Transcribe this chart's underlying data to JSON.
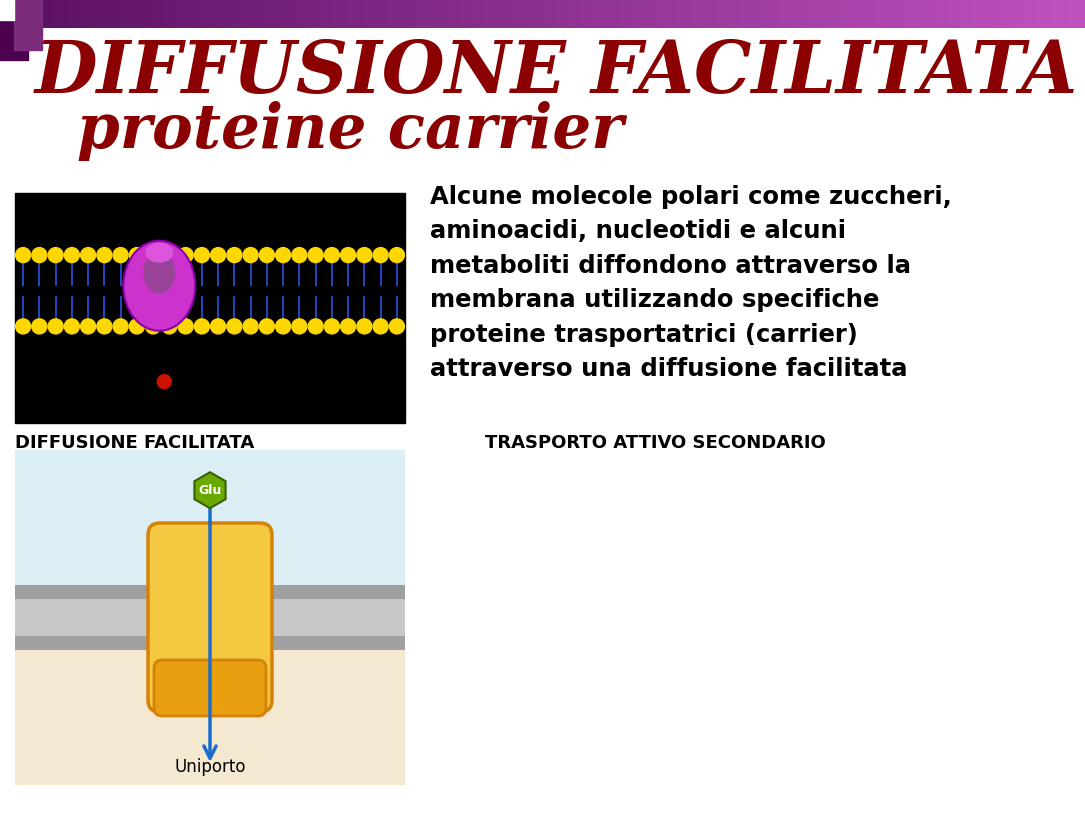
{
  "title_line1": "DIFFUSIONE FACILITATA",
  "title_line2": "proteine carrier",
  "title_color": "#8B0000",
  "title_fontsize1": 52,
  "title_fontsize2": 44,
  "body_text": "Alcune molecole polari come zuccheri,\naminoacidi, nucleotidi e alcuni\nmetaboliti diffondono attraverso la\nmembrana utilizzando specifiche\nproteine trasportatrici (carrier)\nattraverso una diffusione facilitata",
  "body_fontsize": 17.5,
  "label_diffusione": "DIFFUSIONE FACILITATA",
  "label_trasporto": "    TRASPORTO ATTIVO SECONDARIO",
  "label_uniporto": "Uniporto",
  "label_glu": "Glu",
  "bg_color": "#ffffff",
  "diagram_bg_top": "#daeef3",
  "diagram_bg_bottom": "#f5e8d0",
  "membrane_dark": "#a0a0a0",
  "membrane_light": "#c8c8c8",
  "protein_color": "#f5c842",
  "protein_edge": "#d4820a",
  "protein_bottom_color": "#e8a010",
  "arrow_color": "#1a6dcc",
  "glu_color": "#6aaa00",
  "glu_text_color": "#ffffff",
  "header_purple_dark": "#4B0050",
  "header_purple_mid": "#7B2D7B"
}
